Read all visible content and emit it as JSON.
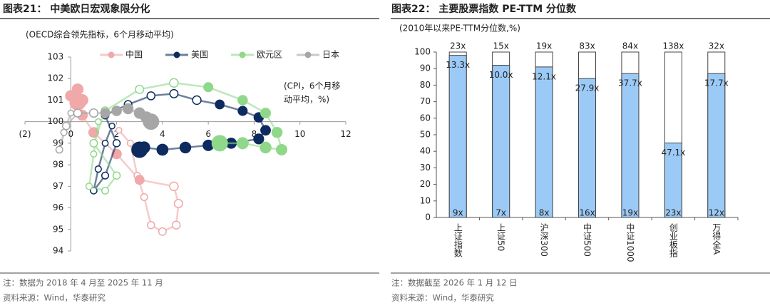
{
  "chart_data": [
    {
      "type": "scatter",
      "title": "图表21：  中美欧日宏观象限分化",
      "subtitle": "(OECD综合领先指标，6个月移动平均)",
      "annotation": [
        "(CPI，6个月移",
        "动平均，%)"
      ],
      "note": "注：数据为 2018 年 4 月至 2025 年 11 月",
      "source": "资料来源：Wind，华泰研究",
      "xlim": [
        -2,
        12
      ],
      "xticks": [
        {
          "value": -2,
          "label": "(2)"
        },
        0,
        2,
        4,
        6,
        8,
        10,
        12
      ],
      "ylim": [
        94,
        103
      ],
      "yticks": [
        94,
        95,
        96,
        97,
        98,
        99,
        100,
        101,
        102,
        103
      ],
      "series": [
        {
          "name": "中国",
          "color": "#f0a8a8",
          "x": [
            2.1,
            2.6,
            2.9,
            3.2,
            3.5,
            4.0,
            4.6,
            4.7,
            4.5,
            3.0,
            2.0,
            1.0,
            0.5,
            0.0,
            0.3,
            0.5,
            0.3
          ],
          "y": [
            99.6,
            99.0,
            97.5,
            96.5,
            95.2,
            94.9,
            95.2,
            96.2,
            97.0,
            97.3,
            98.5,
            99.5,
            100.3,
            101.2,
            101.5,
            101.0,
            100.9
          ]
        },
        {
          "name": "美国",
          "color": "#0d2b5e",
          "x": [
            1.8,
            1.5,
            1.2,
            1.0,
            1.5,
            2.0,
            1.5,
            2.5,
            3.5,
            4.5,
            5.5,
            6.5,
            7.5,
            8.2,
            8.5,
            8.2,
            7.0,
            6.0,
            5.0,
            4.0,
            3.2,
            3.0
          ],
          "y": [
            99.8,
            99.0,
            97.8,
            96.8,
            97.5,
            99.0,
            100.3,
            100.8,
            101.2,
            101.3,
            101.0,
            100.8,
            100.5,
            100.2,
            99.6,
            99.2,
            99.0,
            98.9,
            98.8,
            98.7,
            98.8,
            98.7
          ]
        },
        {
          "name": "欧元区",
          "color": "#8fd88a",
          "x": [
            1.2,
            1.0,
            0.8,
            1.5,
            2.0,
            1.0,
            1.5,
            3.0,
            4.5,
            6.0,
            7.5,
            8.5,
            9.0,
            9.2,
            8.5,
            7.5,
            6.5
          ],
          "y": [
            100.0,
            98.5,
            97.0,
            96.8,
            97.5,
            99.0,
            100.5,
            101.5,
            101.8,
            101.6,
            101.0,
            100.4,
            99.5,
            98.7,
            98.8,
            99.0,
            99.0
          ]
        },
        {
          "name": "日本",
          "color": "#a6a6a6",
          "x": [
            0.0,
            -0.3,
            -0.5,
            -0.2,
            0.3,
            1.0,
            1.5,
            2.0,
            2.5,
            3.0,
            3.3,
            3.5
          ],
          "y": [
            100.4,
            99.5,
            98.7,
            99.8,
            100.4,
            100.4,
            100.4,
            100.5,
            100.6,
            100.4,
            100.2,
            100.0
          ]
        }
      ]
    },
    {
      "type": "bar",
      "title": "图表22：  主要股票指数 PE-TTM 分位数",
      "subtitle": "(2010年以来PE-TTM分位数,%)",
      "note": "注：数据截至 2026 年 1 月 12 日",
      "source": "资料来源：Wind，华泰研究",
      "categories": [
        "上证指数",
        "上证50",
        "沪深300",
        "中证500",
        "中证1000",
        "创业板指",
        "万得全A"
      ],
      "values": [
        98,
        92,
        91,
        84,
        87,
        45,
        87
      ],
      "color": "#9ccaf6",
      "top_labels": [
        "23x",
        "15x",
        "19x",
        "83x",
        "84x",
        "138x",
        "32x"
      ],
      "mid_labels": [
        "13.3x",
        "10.0x",
        "12.1x",
        "27.9x",
        "37.7x",
        "47.1x",
        "17.7x"
      ],
      "bottom_labels": [
        "9x",
        "7x",
        "8x",
        "16x",
        "19x",
        "23x",
        "12x"
      ],
      "ylim": [
        0,
        100
      ],
      "yticks": [
        0,
        10,
        20,
        30,
        40,
        50,
        60,
        70,
        80,
        90,
        100
      ]
    }
  ]
}
